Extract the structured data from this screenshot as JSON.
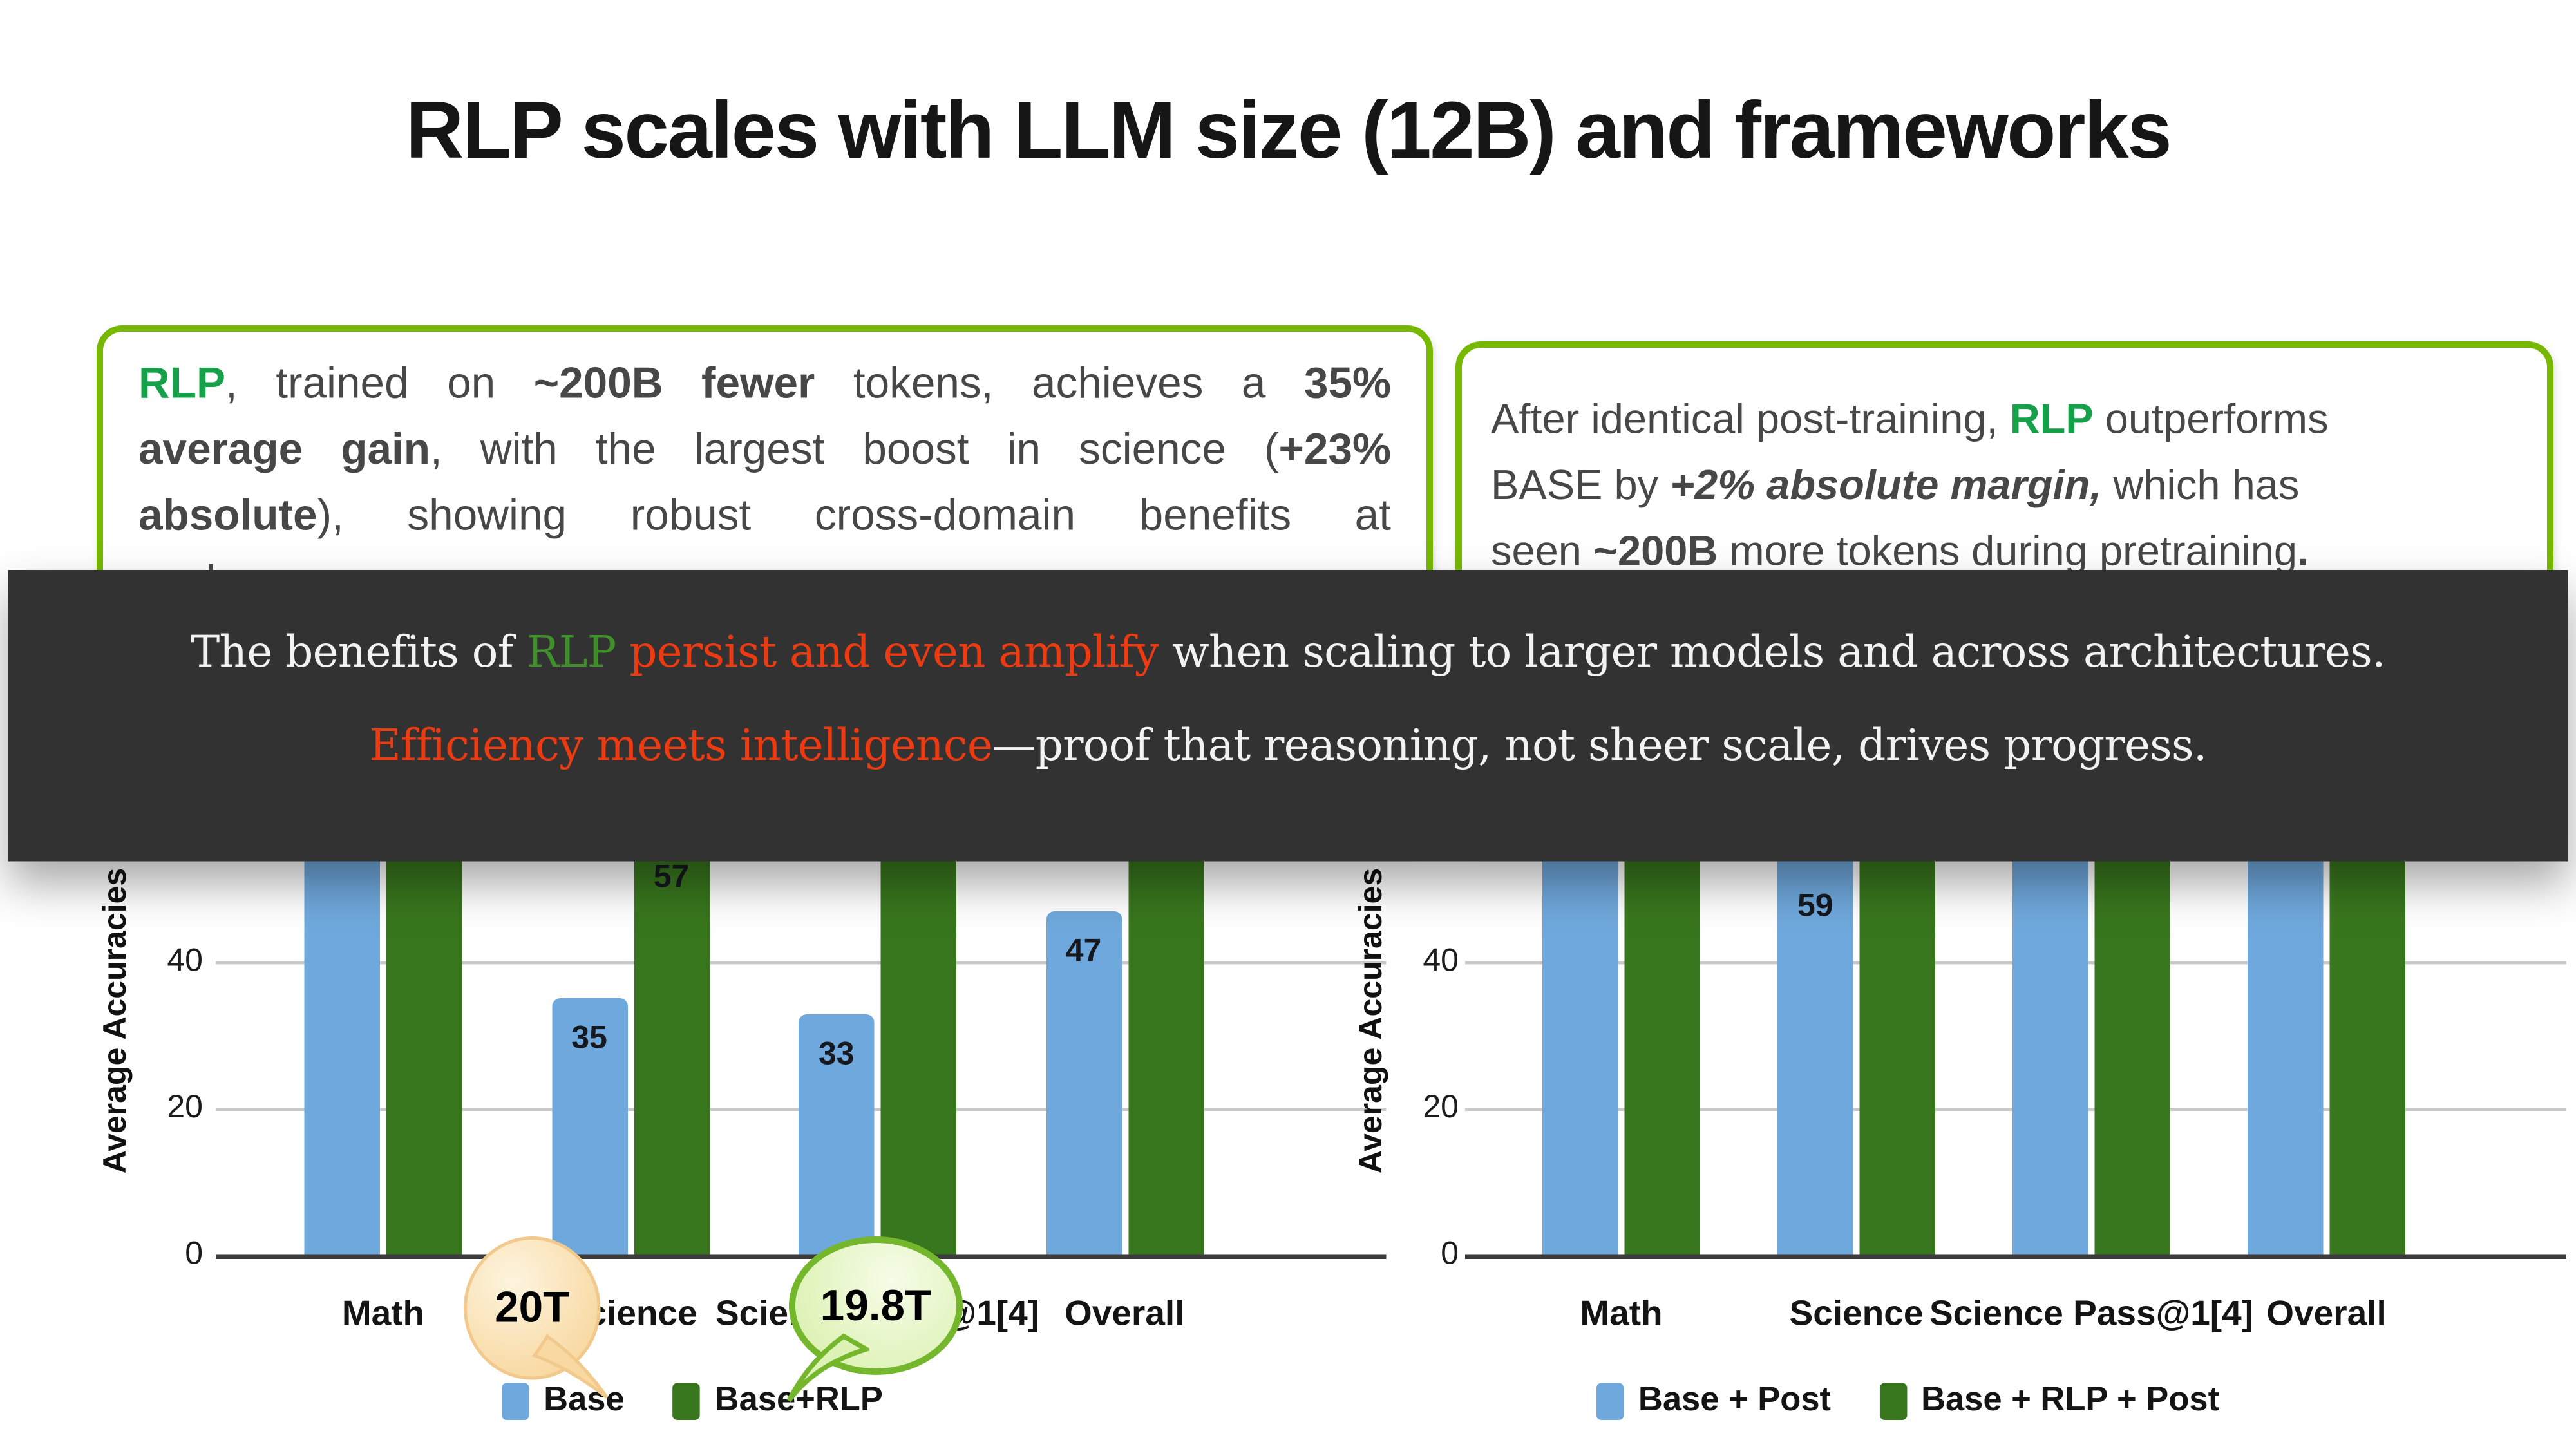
{
  "slide": {
    "title": "RLP scales with LLM size (12B) and frameworks",
    "background": "#ffffff"
  },
  "colors": {
    "rlp_green": "#16a04a",
    "box_border_green": "#76b900",
    "banner_bg": "#323232",
    "banner_green": "#3f8f2a",
    "banner_red": "#ee3a10",
    "bar_blue": "#6fa8dc",
    "bar_green": "#38761d"
  },
  "left_note": {
    "paragraph_runs": [
      {
        "t": "RLP",
        "s": "green-bold"
      },
      {
        "t": ", trained on "
      },
      {
        "t": "~200B fewer",
        "s": "bold"
      },
      {
        "t": " tokens, achieves a "
      },
      {
        "t": "35%",
        "s": "bold"
      },
      {
        "br": true
      },
      {
        "t": "average gain",
        "s": "bold"
      },
      {
        "t": ", with the largest boost in science ("
      },
      {
        "t": "+23%",
        "s": "bold"
      },
      {
        "br": true
      },
      {
        "t": "absolute",
        "s": "bold"
      },
      {
        "t": "), showing robust cross-domain benefits at"
      }
    ],
    "last_line": "scale."
  },
  "right_note": {
    "paragraph_runs": [
      {
        "t": "After identical post-training, "
      },
      {
        "t": "RLP",
        "s": "green-bold"
      },
      {
        "t": " outperforms"
      },
      {
        "br": true
      },
      {
        "t": "BASE by "
      },
      {
        "t": "+2% absolute margin,",
        "s": "bold-italic"
      },
      {
        "t": " which has"
      },
      {
        "br": true
      },
      {
        "t": "seen "
      },
      {
        "t": "~200B",
        "s": "bold"
      },
      {
        "t": " more tokens during pretraining"
      },
      {
        "t": ".",
        "s": "bold"
      }
    ]
  },
  "banner": {
    "line1_runs": [
      {
        "t": "The benefits of "
      },
      {
        "t": "RLP",
        "s": "green"
      },
      {
        "t": " "
      },
      {
        "t": "persist and even amplify",
        "s": "red"
      },
      {
        "t": " when scaling to larger models and across architectures."
      }
    ],
    "line2_runs": [
      {
        "t": "Efficiency meets intelligence",
        "s": "red"
      },
      {
        "t": "—proof that reasoning, not sheer scale, drives progress."
      }
    ]
  },
  "callouts": [
    {
      "text": "20T",
      "fill": "#f8d9a2",
      "border": "#f2c98c",
      "points_to": "Base legend"
    },
    {
      "text": "19.8T",
      "fill": "#ddf2b4",
      "border": "#74b72c",
      "points_to": "Base+RLP legend"
    }
  ],
  "chart_data": [
    {
      "type": "bar",
      "ylabel": "Average Accuracies",
      "categories": [
        "Math",
        "Science",
        "Science Pass@1[4]",
        "Overall"
      ],
      "series": [
        {
          "name": "Base",
          "color": "#6fa8dc",
          "values": [
            null,
            35,
            33,
            47
          ]
        },
        {
          "name": "Base+RLP",
          "color": "#38761d",
          "values": [
            null,
            57,
            null,
            null
          ]
        }
      ],
      "yticks": [
        0,
        20,
        40
      ],
      "ylim": [
        0,
        60
      ],
      "grid": true,
      "legend_position": "bottom",
      "note": "null values = bar tops and labels occluded by overlay banner"
    },
    {
      "type": "bar",
      "ylabel": "Average Accuracies",
      "categories": [
        "Math",
        "Science",
        "Science Pass@1[4]",
        "Overall"
      ],
      "series": [
        {
          "name": "Base + Post",
          "color": "#6fa8dc",
          "values": [
            null,
            59,
            null,
            null
          ]
        },
        {
          "name": "Base + RLP + Post",
          "color": "#38761d",
          "values": [
            null,
            null,
            null,
            null
          ]
        }
      ],
      "yticks": [
        0,
        20,
        40
      ],
      "ylim": [
        0,
        60
      ],
      "grid": true,
      "legend_position": "bottom",
      "note": "null values = bar tops and labels occluded by overlay banner"
    }
  ]
}
